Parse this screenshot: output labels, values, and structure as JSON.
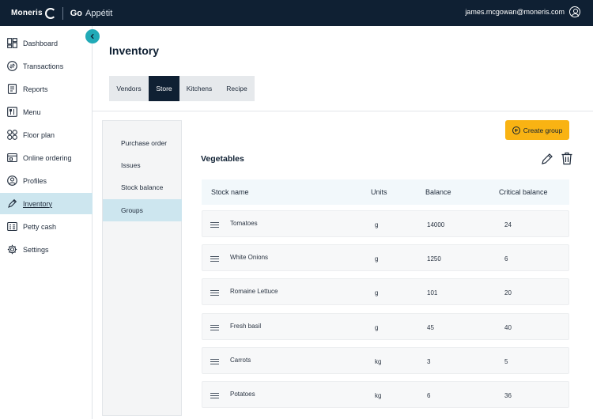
{
  "header": {
    "brand_moneris": "Moneris",
    "brand_go": "Go",
    "brand_app": "Appétit",
    "user_email": "james.mcgowan@moneris.com"
  },
  "sidebar": {
    "collapse_icon": "chevron-left-icon",
    "items": [
      {
        "label": "Dashboard",
        "icon": "dashboard-icon"
      },
      {
        "label": "Transactions",
        "icon": "transactions-icon"
      },
      {
        "label": "Reports",
        "icon": "reports-icon"
      },
      {
        "label": "Menu",
        "icon": "menu-icon"
      },
      {
        "label": "Floor plan",
        "icon": "floor-plan-icon"
      },
      {
        "label": "Online ordering",
        "icon": "online-ordering-icon"
      },
      {
        "label": "Profiles",
        "icon": "profiles-icon"
      },
      {
        "label": "Inventory",
        "icon": "inventory-icon"
      },
      {
        "label": "Petty cash",
        "icon": "petty-cash-icon"
      },
      {
        "label": "Settings",
        "icon": "settings-icon"
      }
    ],
    "active": "Inventory"
  },
  "page": {
    "title": "Inventory",
    "tabs": [
      {
        "label": "Vendors"
      },
      {
        "label": "Store"
      },
      {
        "label": "Kitchens"
      },
      {
        "label": "Recipe"
      }
    ],
    "active_tab": "Store"
  },
  "subnav": {
    "items": [
      {
        "label": "Purchase order"
      },
      {
        "label": "Issues"
      },
      {
        "label": "Stock balance"
      },
      {
        "label": "Groups"
      }
    ],
    "active": "Groups"
  },
  "group": {
    "create_label": "Create group",
    "title": "Vegetables"
  },
  "table": {
    "headers": [
      "Stock name",
      "Units",
      "Balance",
      "Critical balance"
    ],
    "rows": [
      {
        "name": "Tomatoes",
        "unit": "g",
        "balance": "14000",
        "critical": "24"
      },
      {
        "name": "White Onions",
        "unit": "g",
        "balance": "1250",
        "critical": "6"
      },
      {
        "name": "Romaine Lettuce",
        "unit": "g",
        "balance": "101",
        "critical": "20"
      },
      {
        "name": "Fresh basil",
        "unit": "g",
        "balance": "45",
        "critical": "40"
      },
      {
        "name": "Carrots",
        "unit": "kg",
        "balance": "3",
        "critical": "5"
      },
      {
        "name": "Potatoes",
        "unit": "kg",
        "balance": "6",
        "critical": "36"
      }
    ]
  },
  "colors": {
    "header_bg": "#0f2033",
    "accent_teal": "#21aab7",
    "active_bg": "#cde6ef",
    "button_yellow": "#f9b313"
  }
}
